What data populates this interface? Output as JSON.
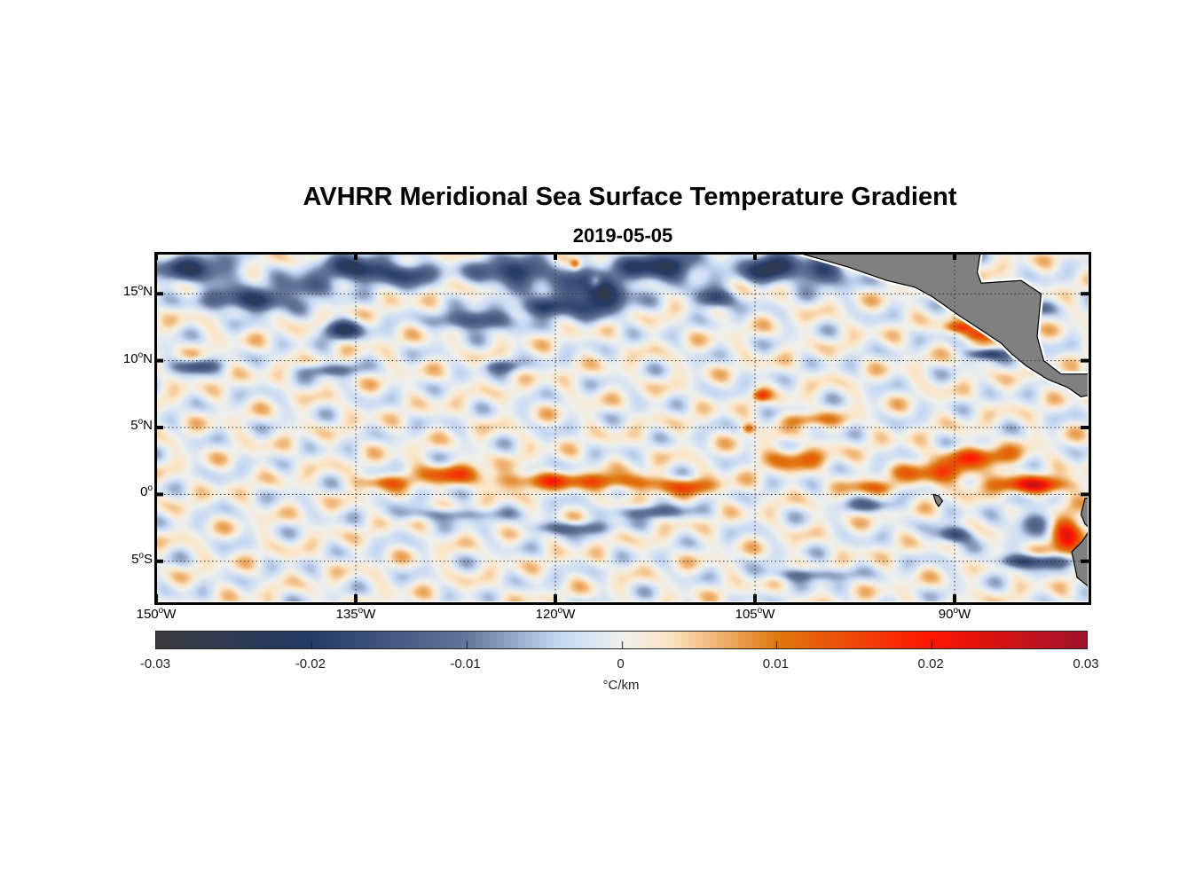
{
  "title": "AVHRR Meridional Sea Surface Temperature Gradient",
  "subtitle": "2019-05-05",
  "chart_data": {
    "type": "heatmap",
    "title": "AVHRR Meridional Sea Surface Temperature Gradient",
    "subtitle": "2019-05-05",
    "lon_range": [
      -150,
      -80
    ],
    "lat_range": [
      -8,
      18
    ],
    "grid": true,
    "x_ticks": [
      {
        "value": -150,
        "num": "150",
        "suffix": "W"
      },
      {
        "value": -135,
        "num": "135",
        "suffix": "W"
      },
      {
        "value": -120,
        "num": "120",
        "suffix": "W"
      },
      {
        "value": -105,
        "num": "105",
        "suffix": "W"
      },
      {
        "value": -90,
        "num": "90",
        "suffix": "W"
      }
    ],
    "y_ticks": [
      {
        "value": 15,
        "num": "15",
        "suffix": "N"
      },
      {
        "value": 10,
        "num": "10",
        "suffix": "N"
      },
      {
        "value": 5,
        "num": "5",
        "suffix": "N"
      },
      {
        "value": 0,
        "num": "0",
        "suffix": ""
      },
      {
        "value": -5,
        "num": "5",
        "suffix": "S"
      }
    ],
    "colorbar": {
      "label": "°C/km",
      "range": [
        -0.03,
        0.03
      ],
      "ticks": [
        "-0.03",
        "-0.02",
        "-0.01",
        "0",
        "0.01",
        "0.02",
        "0.03"
      ],
      "stops": [
        [
          -0.03,
          "#3a3a3c"
        ],
        [
          -0.02,
          "#253a66"
        ],
        [
          -0.01,
          "#647499"
        ],
        [
          -0.004,
          "#c6d9f4"
        ],
        [
          0,
          "#eef0ee"
        ],
        [
          0.003,
          "#fce6c8"
        ],
        [
          0.01,
          "#df7810"
        ],
        [
          0.02,
          "#ff1500"
        ],
        [
          0.03,
          "#a0122e"
        ]
      ]
    },
    "features": [
      [
        -147,
        16.8,
        -0.02,
        3,
        1
      ],
      [
        -143,
        14.5,
        -0.022,
        3,
        0.8
      ],
      [
        -139,
        15.5,
        -0.015,
        2,
        0.8
      ],
      [
        -135,
        16.8,
        -0.022,
        2.5,
        1
      ],
      [
        -131,
        16.5,
        -0.018,
        2,
        0.8
      ],
      [
        -136,
        12.3,
        -0.02,
        1.5,
        0.7
      ],
      [
        -123,
        16.6,
        -0.022,
        3,
        1
      ],
      [
        -117,
        15,
        -0.026,
        2.5,
        1.5
      ],
      [
        -112,
        17,
        -0.024,
        3,
        1
      ],
      [
        -108,
        14.6,
        -0.02,
        1.5,
        0.7
      ],
      [
        -104,
        17,
        -0.025,
        2,
        1
      ],
      [
        -100,
        16.5,
        -0.018,
        2,
        1
      ],
      [
        -126,
        13,
        -0.02,
        2.5,
        0.7
      ],
      [
        -121,
        14,
        -0.02,
        2,
        0.7
      ],
      [
        -147,
        9.6,
        -0.016,
        1.5,
        0.5
      ],
      [
        -137,
        9.3,
        -0.012,
        2,
        0.5
      ],
      [
        -124,
        9.6,
        -0.012,
        1.5,
        0.5
      ],
      [
        -128,
        1.5,
        0.012,
        3,
        0.7
      ],
      [
        -121,
        1,
        0.013,
        4,
        0.6
      ],
      [
        -115,
        0.9,
        0.012,
        3,
        0.6
      ],
      [
        -110,
        0.6,
        0.012,
        2.5,
        0.6
      ],
      [
        -133,
        0.9,
        0.01,
        2,
        0.5
      ],
      [
        -102,
        2.7,
        0.011,
        2.5,
        0.8
      ],
      [
        -96,
        0.5,
        0.01,
        2,
        0.5
      ],
      [
        -91,
        1.6,
        0.014,
        3,
        0.8
      ],
      [
        -88,
        2.8,
        0.014,
        3,
        0.7
      ],
      [
        -84,
        0.7,
        0.02,
        3,
        0.6
      ],
      [
        -81.5,
        -3,
        0.022,
        1.2,
        1.5
      ],
      [
        -104.5,
        7.4,
        0.014,
        0.6,
        0.4
      ],
      [
        -105.5,
        4.9,
        0.012,
        0.5,
        0.4
      ],
      [
        -101,
        5.6,
        0.01,
        2,
        0.5
      ],
      [
        -88,
        12,
        0.016,
        1.3,
        0.5
      ],
      [
        -89.5,
        12.5,
        0.013,
        1.2,
        0.4
      ],
      [
        -87.5,
        10.5,
        -0.02,
        1.3,
        0.4
      ],
      [
        -117,
        15.9,
        0.014,
        0.5,
        0.5
      ],
      [
        -118.5,
        17.2,
        0.012,
        0.4,
        0.4
      ],
      [
        -119,
        -2.5,
        -0.012,
        3,
        0.5
      ],
      [
        -128,
        -1.5,
        -0.01,
        4,
        0.5
      ],
      [
        -113,
        -1.3,
        -0.012,
        3,
        0.5
      ],
      [
        -90,
        -3,
        -0.02,
        1.2,
        0.6
      ],
      [
        -84,
        -5,
        -0.018,
        3,
        0.5
      ],
      [
        -84,
        -2,
        -0.012,
        2,
        0.8
      ],
      [
        -96,
        -0.8,
        -0.01,
        2,
        0.5
      ],
      [
        -101,
        -6,
        -0.012,
        3,
        0.5
      ],
      [
        -85,
        14,
        -0.016,
        2,
        0.5
      ]
    ]
  }
}
